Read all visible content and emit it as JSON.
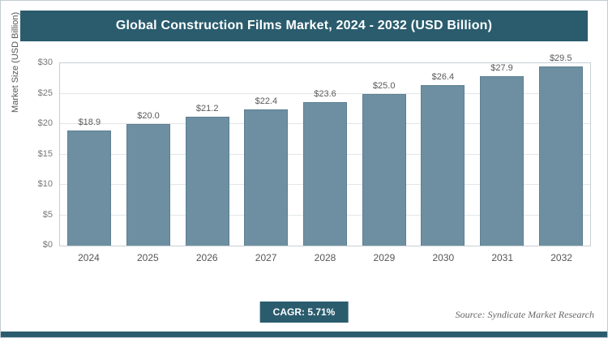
{
  "header": {
    "title": "Global Construction Films Market, 2024 - 2032 (USD Billion)"
  },
  "chart_data": {
    "type": "bar",
    "title": "Global Construction Films Market, 2024 - 2032 (USD Billion)",
    "categories": [
      "2024",
      "2025",
      "2026",
      "2027",
      "2028",
      "2029",
      "2030",
      "2031",
      "2032"
    ],
    "values": [
      18.9,
      20.0,
      21.2,
      22.4,
      23.6,
      25.0,
      26.4,
      27.9,
      29.5
    ],
    "value_label_prefix": "$",
    "xlabel": "",
    "ylabel": "Market Size (USD Billion)",
    "ylim": [
      0,
      30
    ],
    "ytick_step": 5,
    "ytick_prefix": "$",
    "grid": true,
    "legend": "none",
    "bar_color": "#6d8fa1"
  },
  "footer": {
    "cagr_label": "CAGR: 5.71%",
    "source": "Source: Syndicate Market Research"
  },
  "colors": {
    "accent": "#2a5c6e",
    "bar": "#6d8fa1",
    "bar_border": "#5d8092",
    "grid": "#e2e6e8"
  }
}
